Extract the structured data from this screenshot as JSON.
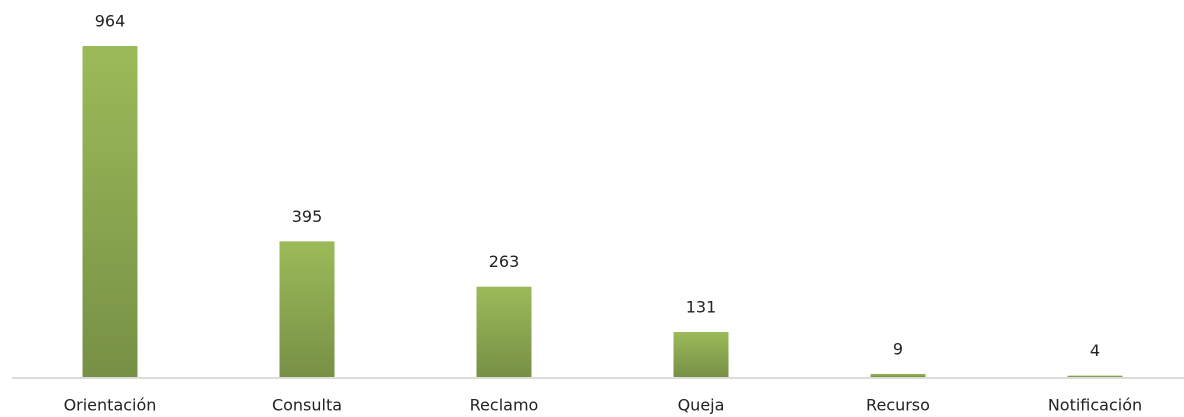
{
  "chart_data": {
    "type": "bar",
    "categories": [
      "Orientación",
      "Consulta",
      "Reclamo",
      "Queja",
      "Recurso",
      "Notificación"
    ],
    "values": [
      964,
      395,
      263,
      131,
      9,
      4
    ],
    "color": "#9bbb59"
  }
}
